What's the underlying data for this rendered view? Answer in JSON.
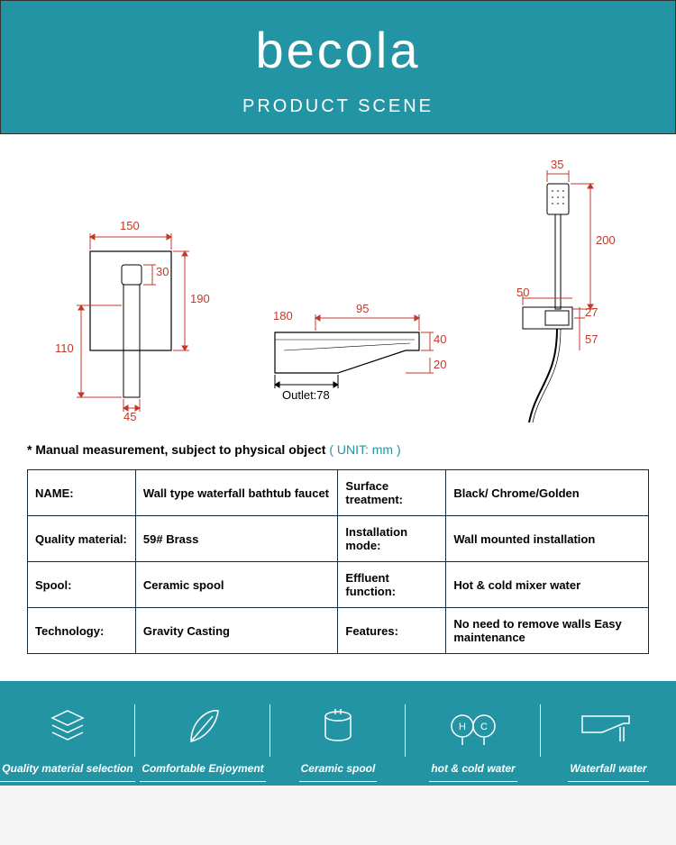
{
  "header": {
    "brand": "becola",
    "subtitle": "PRODUCT SCENE",
    "bg_color": "#2294a4",
    "text_color": "#ffffff"
  },
  "note": {
    "prefix": "* Manual measurement, subject to physical object",
    "unit": "( UNIT: mm )"
  },
  "diagrams": {
    "dim_color": "#c0392b",
    "line_color": "#c0392b",
    "body_color": "#000000",
    "valve": {
      "w": "150",
      "h": "190",
      "knob": "30",
      "handle_h": "110",
      "handle_w": "45"
    },
    "spout": {
      "depth": "180",
      "top_w": "95",
      "h": "40",
      "lip": "20",
      "outlet": "Outlet:78"
    },
    "hand": {
      "head_w": "35",
      "len": "200",
      "mount_w": "50",
      "mount_inner": "27",
      "mount_h": "57"
    }
  },
  "specs": [
    {
      "l1": "NAME:",
      "v1": "Wall type waterfall bathtub faucet",
      "l2": "Surface treatment:",
      "v2": "Black/ Chrome/Golden"
    },
    {
      "l1": "Quality material:",
      "v1": "59# Brass",
      "l2": "Installation mode:",
      "v2": "Wall mounted installation"
    },
    {
      "l1": "Spool:",
      "v1": "Ceramic spool",
      "l2": "Effluent function:",
      "v2": "Hot & cold mixer water"
    },
    {
      "l1": "Technology:",
      "v1": "Gravity Casting",
      "l2": "Features:",
      "v2": "No need to remove walls Easy maintenance"
    }
  ],
  "footer": [
    {
      "label": "Quality material selection"
    },
    {
      "label": "Comfortable Enjoyment"
    },
    {
      "label": "Ceramic spool"
    },
    {
      "label": "hot & cold water"
    },
    {
      "label": "Waterfall water"
    }
  ]
}
